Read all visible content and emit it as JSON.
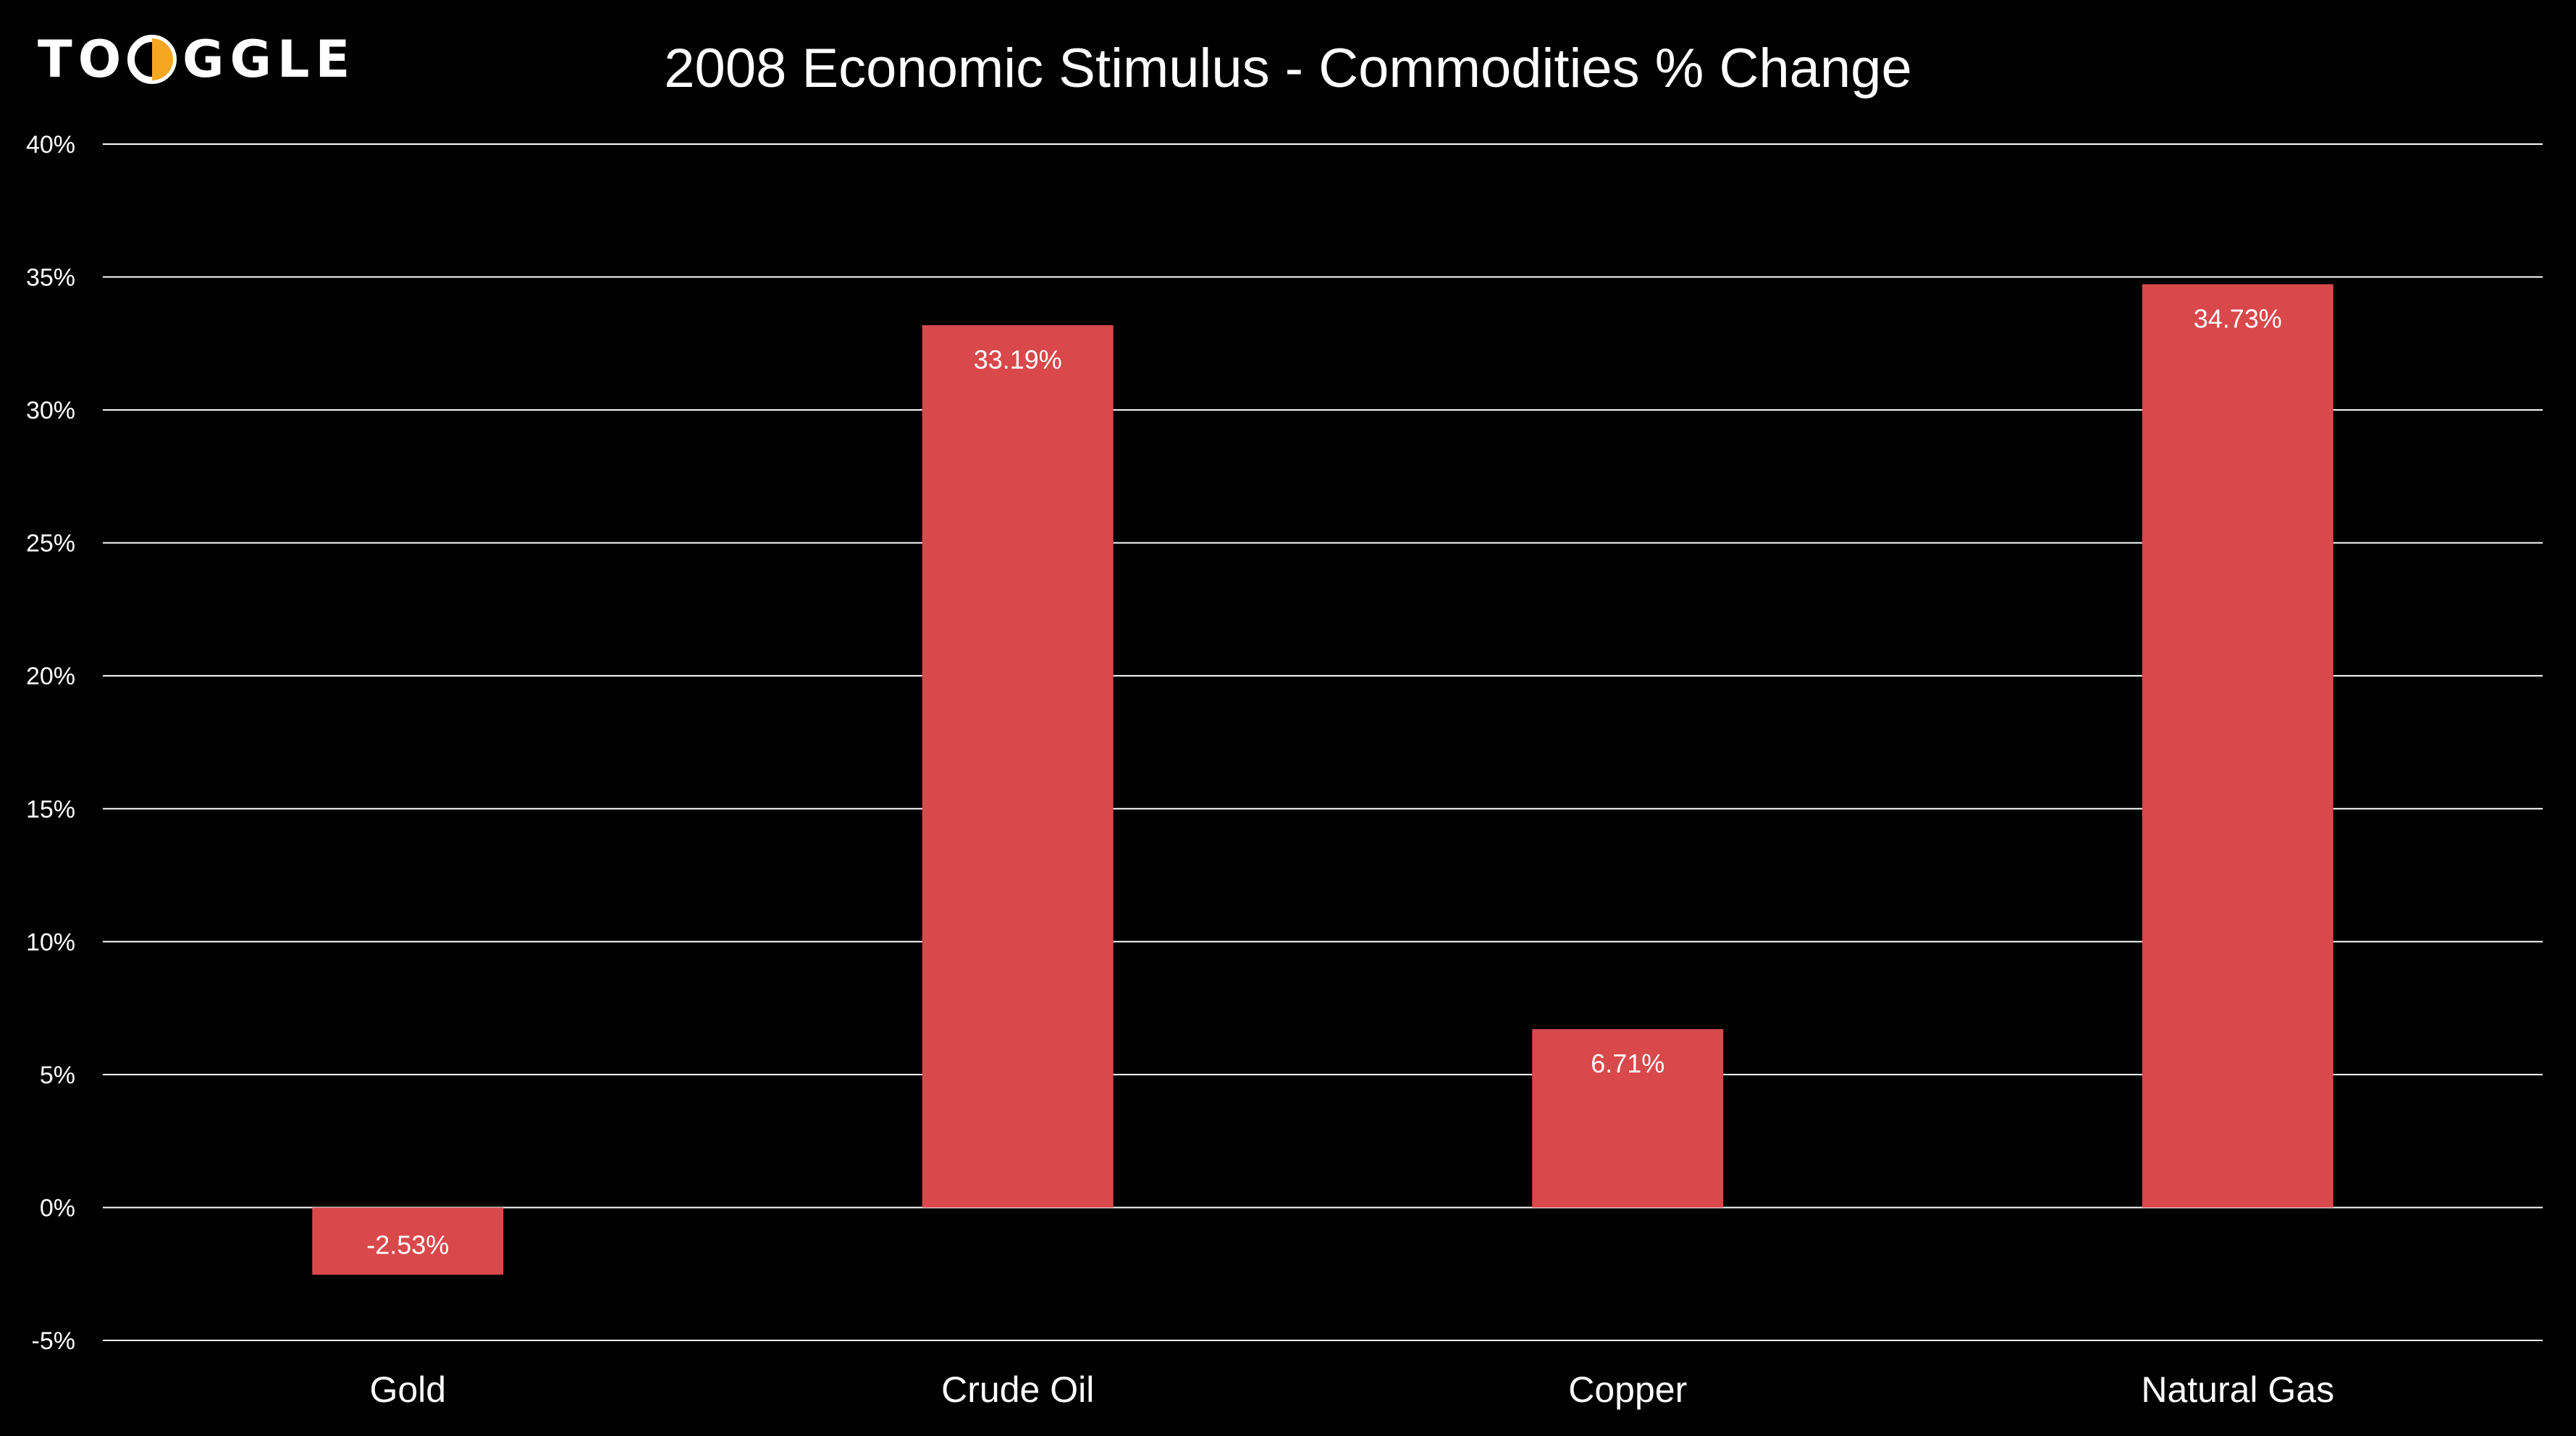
{
  "logo": {
    "text_before": "TO",
    "text_after": "GGLE",
    "mark_color": "#f5a623",
    "text_color": "#ffffff"
  },
  "chart_data": {
    "type": "bar",
    "title": "2008 Economic Stimulus - Commodities % Change",
    "categories": [
      "Gold",
      "Crude Oil",
      "Copper",
      "Natural Gas"
    ],
    "values": [
      -2.53,
      33.19,
      6.71,
      34.73
    ],
    "value_labels": [
      "-2.53%",
      "33.19%",
      "6.71%",
      "34.73%"
    ],
    "y_ticks": [
      "-5%",
      "0%",
      "5%",
      "10%",
      "15%",
      "20%",
      "25%",
      "30%",
      "35%",
      "40%"
    ],
    "y_tick_values": [
      -5,
      0,
      5,
      10,
      15,
      20,
      25,
      30,
      35,
      40
    ],
    "ylim": [
      -5,
      40
    ],
    "xlabel": "",
    "ylabel": "",
    "grid": true,
    "legend": "none",
    "bar_color": "#d9484a",
    "background_color": "#000000",
    "grid_color": "#ffffff",
    "text_color": "#ffffff"
  }
}
